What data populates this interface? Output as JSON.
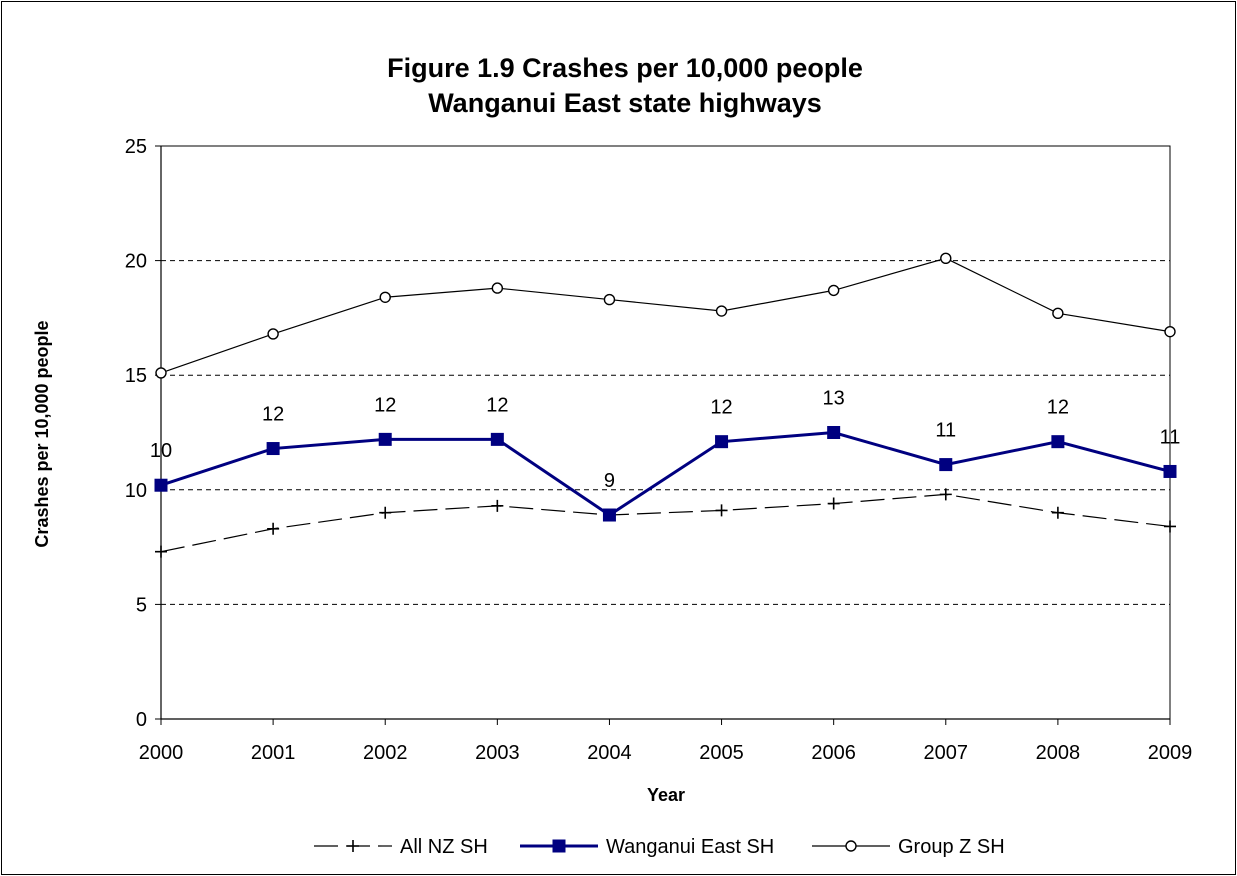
{
  "chart_data": {
    "type": "line",
    "title": "Figure 1.9 Crashes per 10,000 people",
    "subtitle": "Wanganui East state highways",
    "xlabel": "Year",
    "ylabel": "Crashes per 10,000 people",
    "ylim": [
      0,
      25
    ],
    "yticks": [
      "0",
      "5",
      "10",
      "15",
      "20",
      "25"
    ],
    "grid": "horizontal dashed",
    "legend_position": "bottom",
    "categories": [
      "2000",
      "2001",
      "2002",
      "2003",
      "2004",
      "2005",
      "2006",
      "2007",
      "2008",
      "2009"
    ],
    "series": [
      {
        "name": "All NZ SH",
        "marker": "plus",
        "line_style": "dashed",
        "color": "#000000",
        "values": [
          7.3,
          8.3,
          9.0,
          9.3,
          8.9,
          9.1,
          9.4,
          9.8,
          9.0,
          8.4
        ]
      },
      {
        "name": "Wanganui East SH",
        "marker": "square",
        "line_style": "solid",
        "color": "#000080",
        "values": [
          10.2,
          11.8,
          12.2,
          12.2,
          8.9,
          12.1,
          12.5,
          11.1,
          12.1,
          10.8
        ],
        "data_labels": [
          "10",
          "12",
          "12",
          "12",
          "9",
          "12",
          "13",
          "11",
          "12",
          "11"
        ]
      },
      {
        "name": "Group Z SH",
        "marker": "circle",
        "line_style": "solid",
        "color": "#000000",
        "values": [
          15.1,
          16.8,
          18.4,
          18.8,
          18.3,
          17.8,
          18.7,
          20.1,
          17.7,
          16.9
        ]
      }
    ]
  }
}
